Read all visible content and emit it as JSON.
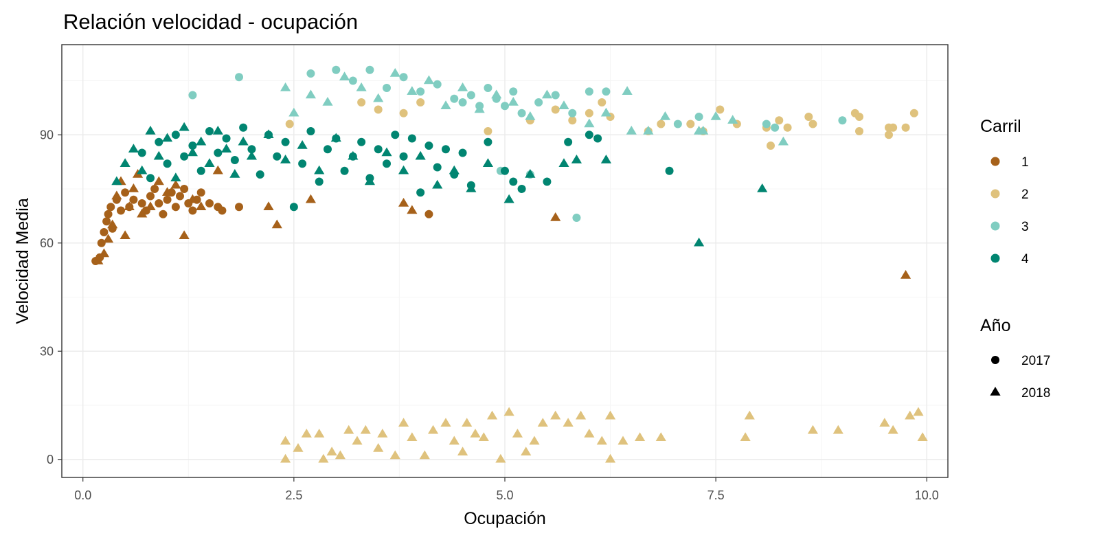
{
  "chart_data": {
    "type": "scatter",
    "title": "Relación velocidad - ocupación",
    "xlabel": "Ocupación",
    "ylabel": "Velocidad Media",
    "xlim": [
      -0.25,
      10.25
    ],
    "ylim": [
      -5,
      115
    ],
    "x_ticks": [
      {
        "value": 0,
        "label": "0.0"
      },
      {
        "value": 2.5,
        "label": "2.5"
      },
      {
        "value": 5,
        "label": "5.0"
      },
      {
        "value": 7.5,
        "label": "7.5"
      },
      {
        "value": 10,
        "label": "10.0"
      }
    ],
    "y_ticks": [
      {
        "value": 0,
        "label": "0"
      },
      {
        "value": 30,
        "label": "30"
      },
      {
        "value": 60,
        "label": "60"
      },
      {
        "value": 90,
        "label": "90"
      }
    ],
    "grid": true,
    "legend_placement": "right",
    "colors": {
      "1": "#a6611a",
      "2": "#dfc27d",
      "3": "#80cdc1",
      "4": "#018571",
      "panel_border": "#333333",
      "grid_major": "#ebebeb",
      "grid_minor": "#f5f5f5"
    },
    "legend": {
      "color_title": "Carril",
      "color_entries": [
        {
          "key": "1",
          "label": "1"
        },
        {
          "key": "2",
          "label": "2"
        },
        {
          "key": "3",
          "label": "3"
        },
        {
          "key": "4",
          "label": "4"
        }
      ],
      "shape_title": "Año",
      "shape_entries": [
        {
          "shape": "circle",
          "label": "2017"
        },
        {
          "shape": "triangle",
          "label": "2018"
        }
      ]
    },
    "series": [
      {
        "carril": "1",
        "year": "2017",
        "shape": "circle",
        "points": [
          [
            0.15,
            55
          ],
          [
            0.2,
            56
          ],
          [
            0.22,
            60
          ],
          [
            0.25,
            63
          ],
          [
            0.28,
            66
          ],
          [
            0.3,
            68
          ],
          [
            0.33,
            70
          ],
          [
            0.35,
            64
          ],
          [
            0.4,
            72
          ],
          [
            0.45,
            69
          ],
          [
            0.5,
            74
          ],
          [
            0.55,
            70
          ],
          [
            0.6,
            72
          ],
          [
            0.7,
            71
          ],
          [
            0.75,
            69
          ],
          [
            0.8,
            73
          ],
          [
            0.85,
            75
          ],
          [
            0.9,
            71
          ],
          [
            0.95,
            68
          ],
          [
            1.0,
            72
          ],
          [
            1.05,
            74
          ],
          [
            1.1,
            70
          ],
          [
            1.15,
            73
          ],
          [
            1.2,
            75
          ],
          [
            1.25,
            71
          ],
          [
            1.3,
            69
          ],
          [
            1.35,
            72
          ],
          [
            1.4,
            74
          ],
          [
            1.5,
            71
          ],
          [
            1.6,
            70
          ],
          [
            1.65,
            69
          ],
          [
            1.85,
            70
          ],
          [
            4.1,
            68
          ]
        ]
      },
      {
        "carril": "1",
        "year": "2018",
        "shape": "triangle",
        "points": [
          [
            0.18,
            55
          ],
          [
            0.25,
            57
          ],
          [
            0.3,
            61
          ],
          [
            0.35,
            65
          ],
          [
            0.4,
            73
          ],
          [
            0.45,
            77
          ],
          [
            0.5,
            62
          ],
          [
            0.55,
            70
          ],
          [
            0.6,
            75
          ],
          [
            0.65,
            79
          ],
          [
            0.7,
            68
          ],
          [
            0.8,
            70
          ],
          [
            0.9,
            77
          ],
          [
            1.0,
            74
          ],
          [
            1.1,
            76
          ],
          [
            1.2,
            62
          ],
          [
            1.3,
            72
          ],
          [
            1.4,
            70
          ],
          [
            1.6,
            80
          ],
          [
            2.2,
            70
          ],
          [
            2.3,
            65
          ],
          [
            2.7,
            72
          ],
          [
            3.8,
            71
          ],
          [
            3.9,
            69
          ],
          [
            5.6,
            67
          ],
          [
            9.75,
            51
          ]
        ]
      },
      {
        "carril": "2",
        "year": "2017",
        "shape": "circle",
        "points": [
          [
            2.45,
            93
          ],
          [
            3.3,
            99
          ],
          [
            3.5,
            97
          ],
          [
            3.8,
            96
          ],
          [
            4.0,
            99
          ],
          [
            4.8,
            91
          ],
          [
            5.3,
            94
          ],
          [
            5.6,
            97
          ],
          [
            5.8,
            94
          ],
          [
            6.0,
            96
          ],
          [
            6.15,
            99
          ],
          [
            6.25,
            95
          ],
          [
            6.7,
            91
          ],
          [
            6.85,
            93
          ],
          [
            7.2,
            93
          ],
          [
            7.35,
            91
          ],
          [
            7.55,
            97
          ],
          [
            7.75,
            93
          ],
          [
            8.1,
            92
          ],
          [
            8.15,
            87
          ],
          [
            8.25,
            94
          ],
          [
            8.35,
            92
          ],
          [
            8.6,
            95
          ],
          [
            8.65,
            93
          ],
          [
            9.15,
            96
          ],
          [
            9.2,
            95
          ],
          [
            9.2,
            91
          ],
          [
            9.55,
            92
          ],
          [
            9.55,
            90
          ],
          [
            9.6,
            92
          ],
          [
            9.75,
            92
          ],
          [
            9.85,
            96
          ]
        ]
      },
      {
        "carril": "2",
        "year": "2018",
        "shape": "triangle",
        "points": [
          [
            2.4,
            5
          ],
          [
            2.4,
            0
          ],
          [
            2.55,
            3
          ],
          [
            2.65,
            7
          ],
          [
            2.8,
            7
          ],
          [
            2.85,
            0
          ],
          [
            2.95,
            2
          ],
          [
            3.05,
            1
          ],
          [
            3.15,
            8
          ],
          [
            3.25,
            5
          ],
          [
            3.35,
            8
          ],
          [
            3.5,
            3
          ],
          [
            3.55,
            7
          ],
          [
            3.7,
            1
          ],
          [
            3.8,
            10
          ],
          [
            3.9,
            6
          ],
          [
            4.05,
            1
          ],
          [
            4.15,
            8
          ],
          [
            4.3,
            10
          ],
          [
            4.4,
            5
          ],
          [
            4.5,
            2
          ],
          [
            4.55,
            10
          ],
          [
            4.65,
            7
          ],
          [
            4.75,
            6
          ],
          [
            4.85,
            12
          ],
          [
            4.95,
            0
          ],
          [
            5.05,
            13
          ],
          [
            5.15,
            7
          ],
          [
            5.25,
            2
          ],
          [
            5.35,
            5
          ],
          [
            5.45,
            10
          ],
          [
            5.6,
            12
          ],
          [
            5.75,
            10
          ],
          [
            5.9,
            12
          ],
          [
            6.0,
            7
          ],
          [
            6.15,
            5
          ],
          [
            6.25,
            12
          ],
          [
            6.25,
            0
          ],
          [
            6.4,
            5
          ],
          [
            6.6,
            6
          ],
          [
            6.85,
            6
          ],
          [
            7.85,
            6
          ],
          [
            7.9,
            12
          ],
          [
            8.65,
            8
          ],
          [
            8.95,
            8
          ],
          [
            9.5,
            10
          ],
          [
            9.6,
            8
          ],
          [
            9.8,
            12
          ],
          [
            9.9,
            13
          ],
          [
            9.95,
            6
          ]
        ]
      },
      {
        "carril": "3",
        "year": "2017",
        "shape": "circle",
        "points": [
          [
            1.3,
            101
          ],
          [
            1.85,
            106
          ],
          [
            2.7,
            107
          ],
          [
            3.0,
            108
          ],
          [
            3.2,
            105
          ],
          [
            3.4,
            108
          ],
          [
            3.6,
            103
          ],
          [
            3.8,
            106
          ],
          [
            4.0,
            102
          ],
          [
            4.2,
            104
          ],
          [
            4.4,
            100
          ],
          [
            4.5,
            99
          ],
          [
            4.6,
            101
          ],
          [
            4.7,
            98
          ],
          [
            4.8,
            103
          ],
          [
            4.9,
            100
          ],
          [
            5.0,
            98
          ],
          [
            5.1,
            102
          ],
          [
            5.2,
            96
          ],
          [
            5.4,
            99
          ],
          [
            5.6,
            101
          ],
          [
            5.8,
            96
          ],
          [
            6.0,
            102
          ],
          [
            6.2,
            102
          ],
          [
            4.95,
            80
          ],
          [
            5.3,
            79
          ],
          [
            5.85,
            67
          ],
          [
            7.3,
            95
          ],
          [
            8.2,
            92
          ],
          [
            9.0,
            94
          ],
          [
            8.1,
            93
          ],
          [
            7.05,
            93
          ]
        ]
      },
      {
        "carril": "3",
        "year": "2018",
        "shape": "triangle",
        "points": [
          [
            2.4,
            103
          ],
          [
            2.5,
            96
          ],
          [
            2.7,
            101
          ],
          [
            2.9,
            99
          ],
          [
            3.1,
            106
          ],
          [
            3.3,
            103
          ],
          [
            3.5,
            100
          ],
          [
            3.7,
            107
          ],
          [
            3.9,
            102
          ],
          [
            4.1,
            105
          ],
          [
            4.3,
            98
          ],
          [
            4.5,
            103
          ],
          [
            4.7,
            97
          ],
          [
            4.9,
            101
          ],
          [
            5.1,
            99
          ],
          [
            5.3,
            95
          ],
          [
            5.5,
            101
          ],
          [
            5.7,
            98
          ],
          [
            6.0,
            93
          ],
          [
            6.2,
            96
          ],
          [
            6.45,
            102
          ],
          [
            6.5,
            91
          ],
          [
            6.7,
            91
          ],
          [
            6.9,
            95
          ],
          [
            7.3,
            91
          ],
          [
            7.5,
            95
          ],
          [
            7.7,
            94
          ],
          [
            7.35,
            91
          ],
          [
            8.3,
            88
          ]
        ]
      },
      {
        "carril": "4",
        "year": "2017",
        "shape": "circle",
        "points": [
          [
            0.7,
            85
          ],
          [
            0.8,
            78
          ],
          [
            0.9,
            88
          ],
          [
            1.0,
            82
          ],
          [
            1.1,
            90
          ],
          [
            1.2,
            84
          ],
          [
            1.3,
            87
          ],
          [
            1.4,
            80
          ],
          [
            1.5,
            91
          ],
          [
            1.6,
            85
          ],
          [
            1.7,
            89
          ],
          [
            1.8,
            83
          ],
          [
            1.9,
            92
          ],
          [
            2.0,
            86
          ],
          [
            2.1,
            79
          ],
          [
            2.2,
            90
          ],
          [
            2.3,
            84
          ],
          [
            2.4,
            88
          ],
          [
            2.5,
            70
          ],
          [
            2.6,
            82
          ],
          [
            2.7,
            91
          ],
          [
            2.8,
            77
          ],
          [
            2.9,
            86
          ],
          [
            3.0,
            89
          ],
          [
            3.1,
            80
          ],
          [
            3.2,
            84
          ],
          [
            3.3,
            88
          ],
          [
            3.4,
            78
          ],
          [
            3.5,
            86
          ],
          [
            3.6,
            82
          ],
          [
            3.7,
            90
          ],
          [
            3.8,
            84
          ],
          [
            3.9,
            89
          ],
          [
            4.0,
            74
          ],
          [
            4.1,
            87
          ],
          [
            4.2,
            81
          ],
          [
            4.3,
            86
          ],
          [
            4.4,
            79
          ],
          [
            4.5,
            85
          ],
          [
            4.6,
            76
          ],
          [
            4.8,
            88
          ],
          [
            5.0,
            80
          ],
          [
            5.1,
            77
          ],
          [
            5.2,
            75
          ],
          [
            5.5,
            77
          ],
          [
            5.75,
            88
          ],
          [
            6.0,
            90
          ],
          [
            6.1,
            89
          ],
          [
            6.95,
            80
          ]
        ]
      },
      {
        "carril": "4",
        "year": "2018",
        "shape": "triangle",
        "points": [
          [
            0.4,
            77
          ],
          [
            0.5,
            82
          ],
          [
            0.6,
            86
          ],
          [
            0.7,
            80
          ],
          [
            0.8,
            91
          ],
          [
            0.9,
            84
          ],
          [
            1.0,
            89
          ],
          [
            1.1,
            78
          ],
          [
            1.2,
            92
          ],
          [
            1.3,
            85
          ],
          [
            1.4,
            88
          ],
          [
            1.5,
            82
          ],
          [
            1.6,
            91
          ],
          [
            1.7,
            86
          ],
          [
            1.8,
            79
          ],
          [
            1.9,
            88
          ],
          [
            2.0,
            84
          ],
          [
            2.2,
            90
          ],
          [
            2.4,
            83
          ],
          [
            2.6,
            87
          ],
          [
            2.8,
            80
          ],
          [
            3.0,
            89
          ],
          [
            3.2,
            84
          ],
          [
            3.4,
            77
          ],
          [
            3.6,
            85
          ],
          [
            3.8,
            80
          ],
          [
            4.0,
            84
          ],
          [
            4.2,
            76
          ],
          [
            4.4,
            80
          ],
          [
            4.6,
            75
          ],
          [
            4.8,
            82
          ],
          [
            5.05,
            72
          ],
          [
            5.3,
            79
          ],
          [
            5.7,
            82
          ],
          [
            5.85,
            83
          ],
          [
            6.2,
            83
          ],
          [
            7.3,
            60
          ],
          [
            8.05,
            75
          ]
        ]
      }
    ]
  }
}
